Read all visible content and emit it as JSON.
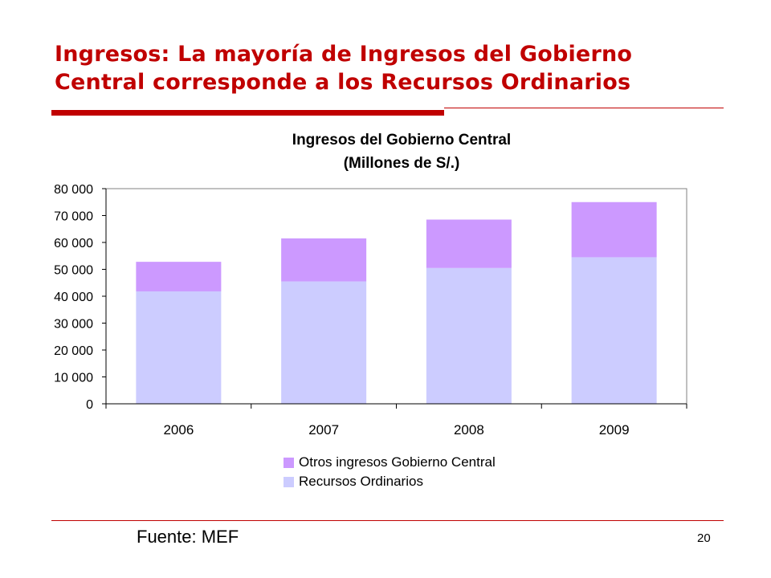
{
  "slide": {
    "title_line1": "Ingresos: La mayoría de Ingresos del Gobierno",
    "title_line2": "Central corresponde a los Recursos Ordinarios",
    "source": "Fuente: MEF",
    "page_number": "20"
  },
  "colors": {
    "accent": "#c00000",
    "recursos_ordinarios": "#ccccff",
    "otros_ingresos": "#cc99ff",
    "axis": "#808080"
  },
  "chart_data": {
    "type": "bar",
    "stacked": true,
    "title_line1": "Ingresos del Gobierno Central",
    "title_line2": "(Millones de S/.)",
    "categories": [
      "2006",
      "2007",
      "2008",
      "2009"
    ],
    "series": [
      {
        "name": "Recursos Ordinarios",
        "values": [
          41800,
          45500,
          50500,
          54500
        ]
      },
      {
        "name": "Otros ingresos Gobierno Central",
        "values": [
          11000,
          16000,
          18000,
          20500
        ]
      }
    ],
    "ylim": [
      0,
      80000
    ],
    "yticks": [
      0,
      10000,
      20000,
      30000,
      40000,
      50000,
      60000,
      70000,
      80000
    ],
    "ytick_labels": [
      "0",
      "10 000",
      "20 000",
      "30 000",
      "40 000",
      "50 000",
      "60 000",
      "70 000",
      "80 000"
    ],
    "xlabel": "",
    "ylabel": "",
    "grid": false,
    "legend": [
      {
        "label": "Otros ingresos Gobierno Central"
      },
      {
        "label": "Recursos Ordinarios"
      }
    ],
    "legend_position": "bottom"
  }
}
